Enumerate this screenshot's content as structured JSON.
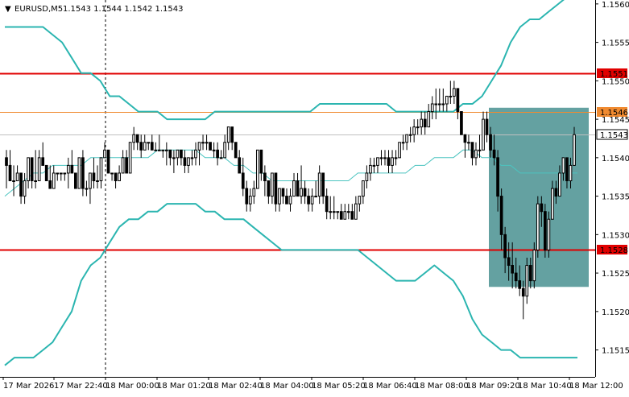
{
  "header": {
    "symbol_timeframe": "EURUSD,M5",
    "ohlc": "1.1543 1.1544 1.1542 1.1543",
    "collapse_glyph": "▼"
  },
  "colors": {
    "background": "#ffffff",
    "candle": "#000000",
    "bollinger": "#2bb5b0",
    "middle_band": "#4cc4c0",
    "resistance_line": "#e00000",
    "orange_level": "#f08a30",
    "highlight_box": "#3d8a89",
    "current_price_line": "#c0c0c0",
    "axis": "#000000"
  },
  "chart_data": {
    "type": "candlestick",
    "symbol": "EURUSD",
    "timeframe": "M5",
    "ylim": [
      1.15115,
      1.15603
    ],
    "y_ticks": [
      "1.1560",
      "1.1555",
      "1.1550",
      "1.1545",
      "1.1540",
      "1.1535",
      "1.1530",
      "1.1525",
      "1.1520",
      "1.1515"
    ],
    "x_ticks": [
      "17 Mar 2026",
      "17 Mar 22:40",
      "18 Mar 00:00",
      "18 Mar 01:20",
      "18 Mar 02:40",
      "18 Mar 04:00",
      "18 Mar 05:20",
      "18 Mar 06:40",
      "18 Mar 08:00",
      "18 Mar 09:20",
      "18 Mar 10:40",
      "18 Mar 12:00"
    ],
    "price_labels": [
      {
        "label": "1.1551",
        "value": 1.1551,
        "style": "red"
      },
      {
        "label": "1.1546",
        "value": 1.1546,
        "style": "orange"
      },
      {
        "label": "1.1543",
        "value": 1.1543,
        "style": "current"
      },
      {
        "label": "1.1528",
        "value": 1.1528,
        "style": "red"
      }
    ],
    "horizontal_lines": [
      {
        "value": 1.1551,
        "style": "red"
      },
      {
        "value": 1.1546,
        "style": "orange"
      },
      {
        "value": 1.1543,
        "style": "current"
      },
      {
        "value": 1.1528,
        "style": "red"
      }
    ],
    "vertical_marker": {
      "x_index": 64
    },
    "highlight_box": {
      "x_start_index": 302,
      "x_end_index": 364,
      "y_top": 1.15465,
      "y_bottom": 1.15232
    },
    "candles": [
      [
        1.154,
        1.1541,
        1.1536,
        1.1539
      ],
      [
        1.1539,
        1.1541,
        1.1537,
        1.1537
      ],
      [
        1.1537,
        1.1539,
        1.1535,
        1.1537
      ],
      [
        1.1537,
        1.1539,
        1.1537,
        1.1538
      ],
      [
        1.1538,
        1.1538,
        1.1534,
        1.1535
      ],
      [
        1.1535,
        1.1538,
        1.1534,
        1.1537
      ],
      [
        1.1537,
        1.154,
        1.1536,
        1.154
      ],
      [
        1.154,
        1.154,
        1.1536,
        1.1537
      ],
      [
        1.1537,
        1.1541,
        1.1536,
        1.1537
      ],
      [
        1.1537,
        1.1541,
        1.1537,
        1.154
      ],
      [
        1.154,
        1.1542,
        1.1539,
        1.1539
      ],
      [
        1.1539,
        1.1539,
        1.1537,
        1.1537
      ],
      [
        1.1537,
        1.1539,
        1.1536,
        1.1536
      ],
      [
        1.1536,
        1.1539,
        1.1536,
        1.1538
      ],
      [
        1.1538,
        1.1538,
        1.1537,
        1.1538
      ],
      [
        1.1538,
        1.1538,
        1.1537,
        1.1538
      ],
      [
        1.1538,
        1.1538,
        1.1537,
        1.1538
      ],
      [
        1.1538,
        1.154,
        1.1536,
        1.1539
      ],
      [
        1.1539,
        1.1541,
        1.1538,
        1.1538
      ],
      [
        1.1538,
        1.1538,
        1.1536,
        1.1536
      ],
      [
        1.1536,
        1.154,
        1.1536,
        1.154
      ],
      [
        1.154,
        1.1541,
        1.1535,
        1.1536
      ],
      [
        1.1536,
        1.1537,
        1.1535,
        1.1536
      ],
      [
        1.1536,
        1.1538,
        1.1534,
        1.1538
      ],
      [
        1.1538,
        1.154,
        1.1536,
        1.1537
      ],
      [
        1.1537,
        1.1539,
        1.1536,
        1.1537
      ],
      [
        1.1537,
        1.154,
        1.1536,
        1.154
      ],
      [
        1.154,
        1.1542,
        1.154,
        1.1541
      ],
      [
        1.1541,
        1.1541,
        1.1538,
        1.1538
      ],
      [
        1.1538,
        1.1538,
        1.1537,
        1.1538
      ],
      [
        1.1538,
        1.1538,
        1.1536,
        1.1537
      ],
      [
        1.1537,
        1.1539,
        1.1537,
        1.1538
      ],
      [
        1.1538,
        1.1541,
        1.1538,
        1.154
      ],
      [
        1.154,
        1.1541,
        1.1538,
        1.1538
      ],
      [
        1.1538,
        1.1542,
        1.1538,
        1.1542
      ],
      [
        1.1542,
        1.1544,
        1.1541,
        1.1543
      ],
      [
        1.1543,
        1.1543,
        1.1541,
        1.1542
      ],
      [
        1.1542,
        1.1543,
        1.154,
        1.1541
      ],
      [
        1.1541,
        1.1543,
        1.1541,
        1.1542
      ],
      [
        1.1542,
        1.1542,
        1.1541,
        1.1542
      ],
      [
        1.1542,
        1.1543,
        1.1541,
        1.1541
      ],
      [
        1.1541,
        1.1542,
        1.1541,
        1.1541
      ],
      [
        1.1541,
        1.1543,
        1.1541,
        1.1541
      ],
      [
        1.1541,
        1.1541,
        1.154,
        1.1541
      ],
      [
        1.1541,
        1.1542,
        1.1539,
        1.1541
      ],
      [
        1.1541,
        1.1541,
        1.1539,
        1.154
      ],
      [
        1.154,
        1.1541,
        1.1538,
        1.154
      ],
      [
        1.154,
        1.1541,
        1.1539,
        1.1541
      ],
      [
        1.1541,
        1.1541,
        1.1539,
        1.154
      ],
      [
        1.154,
        1.1541,
        1.1538,
        1.1539
      ],
      [
        1.1539,
        1.154,
        1.1538,
        1.154
      ],
      [
        1.154,
        1.1541,
        1.1539,
        1.154
      ],
      [
        1.154,
        1.1542,
        1.1539,
        1.1541
      ],
      [
        1.1541,
        1.1542,
        1.1539,
        1.1542
      ],
      [
        1.1542,
        1.1543,
        1.1541,
        1.1542
      ],
      [
        1.1542,
        1.1543,
        1.1541,
        1.1542
      ],
      [
        1.1542,
        1.1542,
        1.1541,
        1.1541
      ],
      [
        1.1541,
        1.1542,
        1.154,
        1.1541
      ],
      [
        1.1541,
        1.1542,
        1.1539,
        1.154
      ],
      [
        1.154,
        1.1541,
        1.154,
        1.154
      ],
      [
        1.154,
        1.1543,
        1.154,
        1.1542
      ],
      [
        1.1542,
        1.1544,
        1.1541,
        1.1544
      ],
      [
        1.1544,
        1.1544,
        1.1541,
        1.1542
      ],
      [
        1.1542,
        1.1542,
        1.154,
        1.154
      ],
      [
        1.154,
        1.1541,
        1.1538,
        1.1538
      ],
      [
        1.1538,
        1.154,
        1.1535,
        1.1536
      ],
      [
        1.1536,
        1.1537,
        1.1533,
        1.1534
      ],
      [
        1.1534,
        1.1536,
        1.1533,
        1.1535
      ],
      [
        1.1535,
        1.1537,
        1.1534,
        1.1536
      ],
      [
        1.1536,
        1.1541,
        1.1536,
        1.1541
      ],
      [
        1.1541,
        1.1541,
        1.1537,
        1.1538
      ],
      [
        1.1538,
        1.1539,
        1.1535,
        1.1537
      ],
      [
        1.1537,
        1.1537,
        1.1534,
        1.1535
      ],
      [
        1.1535,
        1.1538,
        1.1534,
        1.1538
      ],
      [
        1.1538,
        1.1538,
        1.1533,
        1.1534
      ],
      [
        1.1534,
        1.1536,
        1.1533,
        1.1536
      ],
      [
        1.1536,
        1.1536,
        1.1534,
        1.1535
      ],
      [
        1.1535,
        1.1536,
        1.1534,
        1.1534
      ],
      [
        1.1534,
        1.1536,
        1.1533,
        1.1535
      ],
      [
        1.1535,
        1.1538,
        1.1535,
        1.1537
      ],
      [
        1.1537,
        1.1538,
        1.1535,
        1.1535
      ],
      [
        1.1535,
        1.1539,
        1.1534,
        1.1536
      ],
      [
        1.1536,
        1.1537,
        1.1534,
        1.1535
      ],
      [
        1.1535,
        1.1536,
        1.1533,
        1.1534
      ],
      [
        1.1534,
        1.1536,
        1.1533,
        1.1535
      ],
      [
        1.1535,
        1.1537,
        1.1535,
        1.1535
      ],
      [
        1.1535,
        1.1539,
        1.1534,
        1.1538
      ],
      [
        1.1538,
        1.1538,
        1.1534,
        1.1535
      ],
      [
        1.1535,
        1.1536,
        1.1532,
        1.1533
      ],
      [
        1.1533,
        1.1535,
        1.1532,
        1.1533
      ],
      [
        1.1533,
        1.1535,
        1.1532,
        1.1533
      ],
      [
        1.1533,
        1.1533,
        1.1532,
        1.1533
      ],
      [
        1.1533,
        1.1534,
        1.1532,
        1.1532
      ],
      [
        1.1532,
        1.1534,
        1.1532,
        1.1533
      ],
      [
        1.1533,
        1.1534,
        1.1532,
        1.1533
      ],
      [
        1.1533,
        1.1534,
        1.1532,
        1.1532
      ],
      [
        1.1532,
        1.1535,
        1.1532,
        1.1534
      ],
      [
        1.1534,
        1.1535,
        1.1533,
        1.1535
      ],
      [
        1.1535,
        1.1537,
        1.1534,
        1.1537
      ],
      [
        1.1537,
        1.1539,
        1.1536,
        1.1538
      ],
      [
        1.1538,
        1.154,
        1.1537,
        1.1539
      ],
      [
        1.1539,
        1.154,
        1.1538,
        1.1539
      ],
      [
        1.1539,
        1.154,
        1.1538,
        1.154
      ],
      [
        1.154,
        1.1541,
        1.1539,
        1.154
      ],
      [
        1.154,
        1.1541,
        1.1539,
        1.154
      ],
      [
        1.154,
        1.1541,
        1.1538,
        1.1539
      ],
      [
        1.1539,
        1.1541,
        1.1538,
        1.154
      ],
      [
        1.154,
        1.1541,
        1.1539,
        1.154
      ],
      [
        1.154,
        1.1542,
        1.154,
        1.1542
      ],
      [
        1.1542,
        1.1543,
        1.1541,
        1.1542
      ],
      [
        1.1542,
        1.1543,
        1.1541,
        1.1543
      ],
      [
        1.1543,
        1.1544,
        1.1542,
        1.1543
      ],
      [
        1.1543,
        1.1545,
        1.1542,
        1.1544
      ],
      [
        1.1544,
        1.1545,
        1.1543,
        1.1544
      ],
      [
        1.1544,
        1.1546,
        1.1543,
        1.1545
      ],
      [
        1.1545,
        1.1546,
        1.1543,
        1.1544
      ],
      [
        1.1544,
        1.1547,
        1.1544,
        1.1546
      ],
      [
        1.1546,
        1.1548,
        1.1545,
        1.1547
      ],
      [
        1.1547,
        1.1549,
        1.1545,
        1.1547
      ],
      [
        1.1547,
        1.1549,
        1.1546,
        1.1547
      ],
      [
        1.1547,
        1.1549,
        1.1546,
        1.1547
      ],
      [
        1.1547,
        1.1548,
        1.1546,
        1.1548
      ],
      [
        1.1548,
        1.155,
        1.1547,
        1.1548
      ],
      [
        1.1548,
        1.155,
        1.1547,
        1.1549
      ],
      [
        1.1549,
        1.1549,
        1.1545,
        1.1546
      ],
      [
        1.1546,
        1.1546,
        1.1543,
        1.1543
      ],
      [
        1.1543,
        1.1543,
        1.154,
        1.1542
      ],
      [
        1.1542,
        1.1543,
        1.1541,
        1.1542
      ],
      [
        1.1542,
        1.1542,
        1.1539,
        1.154
      ],
      [
        1.154,
        1.1542,
        1.1539,
        1.1541
      ],
      [
        1.1541,
        1.1543,
        1.154,
        1.1541
      ],
      [
        1.1541,
        1.1546,
        1.1541,
        1.1545
      ],
      [
        1.1545,
        1.1546,
        1.1542,
        1.1543
      ],
      [
        1.1543,
        1.1544,
        1.154,
        1.1541
      ],
      [
        1.1541,
        1.1543,
        1.1539,
        1.154
      ],
      [
        1.154,
        1.1541,
        1.1533,
        1.1535
      ],
      [
        1.1535,
        1.1536,
        1.1528,
        1.153
      ],
      [
        1.153,
        1.1531,
        1.1525,
        1.1527
      ],
      [
        1.1527,
        1.1529,
        1.1524,
        1.1526
      ],
      [
        1.1526,
        1.1529,
        1.1523,
        1.1525
      ],
      [
        1.1525,
        1.1527,
        1.1523,
        1.1524
      ],
      [
        1.1524,
        1.1526,
        1.1522,
        1.1523
      ],
      [
        1.1523,
        1.1524,
        1.1519,
        1.1522
      ],
      [
        1.1522,
        1.1527,
        1.1521,
        1.1526
      ],
      [
        1.1526,
        1.1527,
        1.1523,
        1.1524
      ],
      [
        1.1524,
        1.1529,
        1.1523,
        1.1528
      ],
      [
        1.1528,
        1.1535,
        1.1527,
        1.1534
      ],
      [
        1.1534,
        1.1535,
        1.1531,
        1.1533
      ],
      [
        1.1533,
        1.1534,
        1.1527,
        1.1528
      ],
      [
        1.1528,
        1.1533,
        1.1527,
        1.1532
      ],
      [
        1.1532,
        1.1537,
        1.1532,
        1.1536
      ],
      [
        1.1536,
        1.1537,
        1.1534,
        1.1535
      ],
      [
        1.1535,
        1.1539,
        1.1535,
        1.1538
      ],
      [
        1.1538,
        1.154,
        1.1537,
        1.154
      ],
      [
        1.154,
        1.154,
        1.1536,
        1.1537
      ],
      [
        1.1537,
        1.154,
        1.1536,
        1.1539
      ],
      [
        1.1539,
        1.1544,
        1.1539,
        1.1543
      ]
    ],
    "bollinger": {
      "upper": [
        1.1557,
        1.1557,
        1.1557,
        1.1557,
        1.1557,
        1.1556,
        1.1555,
        1.1553,
        1.1551,
        1.1551,
        1.155,
        1.1548,
        1.1548,
        1.1547,
        1.1546,
        1.1546,
        1.1546,
        1.1545,
        1.1545,
        1.1545,
        1.1545,
        1.1545,
        1.1546,
        1.1546,
        1.1546,
        1.1546,
        1.1546,
        1.1546,
        1.1546,
        1.1546,
        1.1546,
        1.1546,
        1.1546,
        1.1547,
        1.1547,
        1.1547,
        1.1547,
        1.1547,
        1.1547,
        1.1547,
        1.1547,
        1.1546,
        1.1546,
        1.1546,
        1.1546,
        1.1546,
        1.1546,
        1.1546,
        1.1547,
        1.1547,
        1.1548,
        1.155,
        1.1552,
        1.1555,
        1.1557,
        1.1558,
        1.1558,
        1.1559,
        1.156,
        1.1561,
        1.1562
      ],
      "middle": [
        1.1535,
        1.1536,
        1.1537,
        1.1538,
        1.1538,
        1.1539,
        1.1539,
        1.1539,
        1.1539,
        1.154,
        1.154,
        1.154,
        1.154,
        1.154,
        1.154,
        1.154,
        1.1541,
        1.1541,
        1.1541,
        1.1541,
        1.1541,
        1.154,
        1.154,
        1.154,
        1.1539,
        1.1539,
        1.1538,
        1.1538,
        1.1537,
        1.1537,
        1.1537,
        1.1537,
        1.1537,
        1.1537,
        1.1537,
        1.1537,
        1.1537,
        1.1538,
        1.1538,
        1.1538,
        1.1538,
        1.1538,
        1.1538,
        1.1539,
        1.1539,
        1.154,
        1.154,
        1.154,
        1.1541,
        1.1541,
        1.154,
        1.154,
        1.1539,
        1.1539,
        1.1538,
        1.1538,
        1.1538,
        1.1538,
        1.1538,
        1.1538,
        1.1538
      ],
      "lower": [
        1.1513,
        1.1514,
        1.1514,
        1.1514,
        1.1515,
        1.1516,
        1.1518,
        1.152,
        1.1524,
        1.1526,
        1.1527,
        1.1529,
        1.1531,
        1.1532,
        1.1532,
        1.1533,
        1.1533,
        1.1534,
        1.1534,
        1.1534,
        1.1534,
        1.1533,
        1.1533,
        1.1532,
        1.1532,
        1.1532,
        1.1531,
        1.153,
        1.1529,
        1.1528,
        1.1528,
        1.1528,
        1.1528,
        1.1528,
        1.1528,
        1.1528,
        1.1528,
        1.1528,
        1.1527,
        1.1526,
        1.1525,
        1.1524,
        1.1524,
        1.1524,
        1.1525,
        1.1526,
        1.1525,
        1.1524,
        1.1522,
        1.1519,
        1.1517,
        1.1516,
        1.1515,
        1.1515,
        1.1514,
        1.1514,
        1.1514,
        1.1514,
        1.1514,
        1.1514,
        1.1514
      ]
    }
  }
}
